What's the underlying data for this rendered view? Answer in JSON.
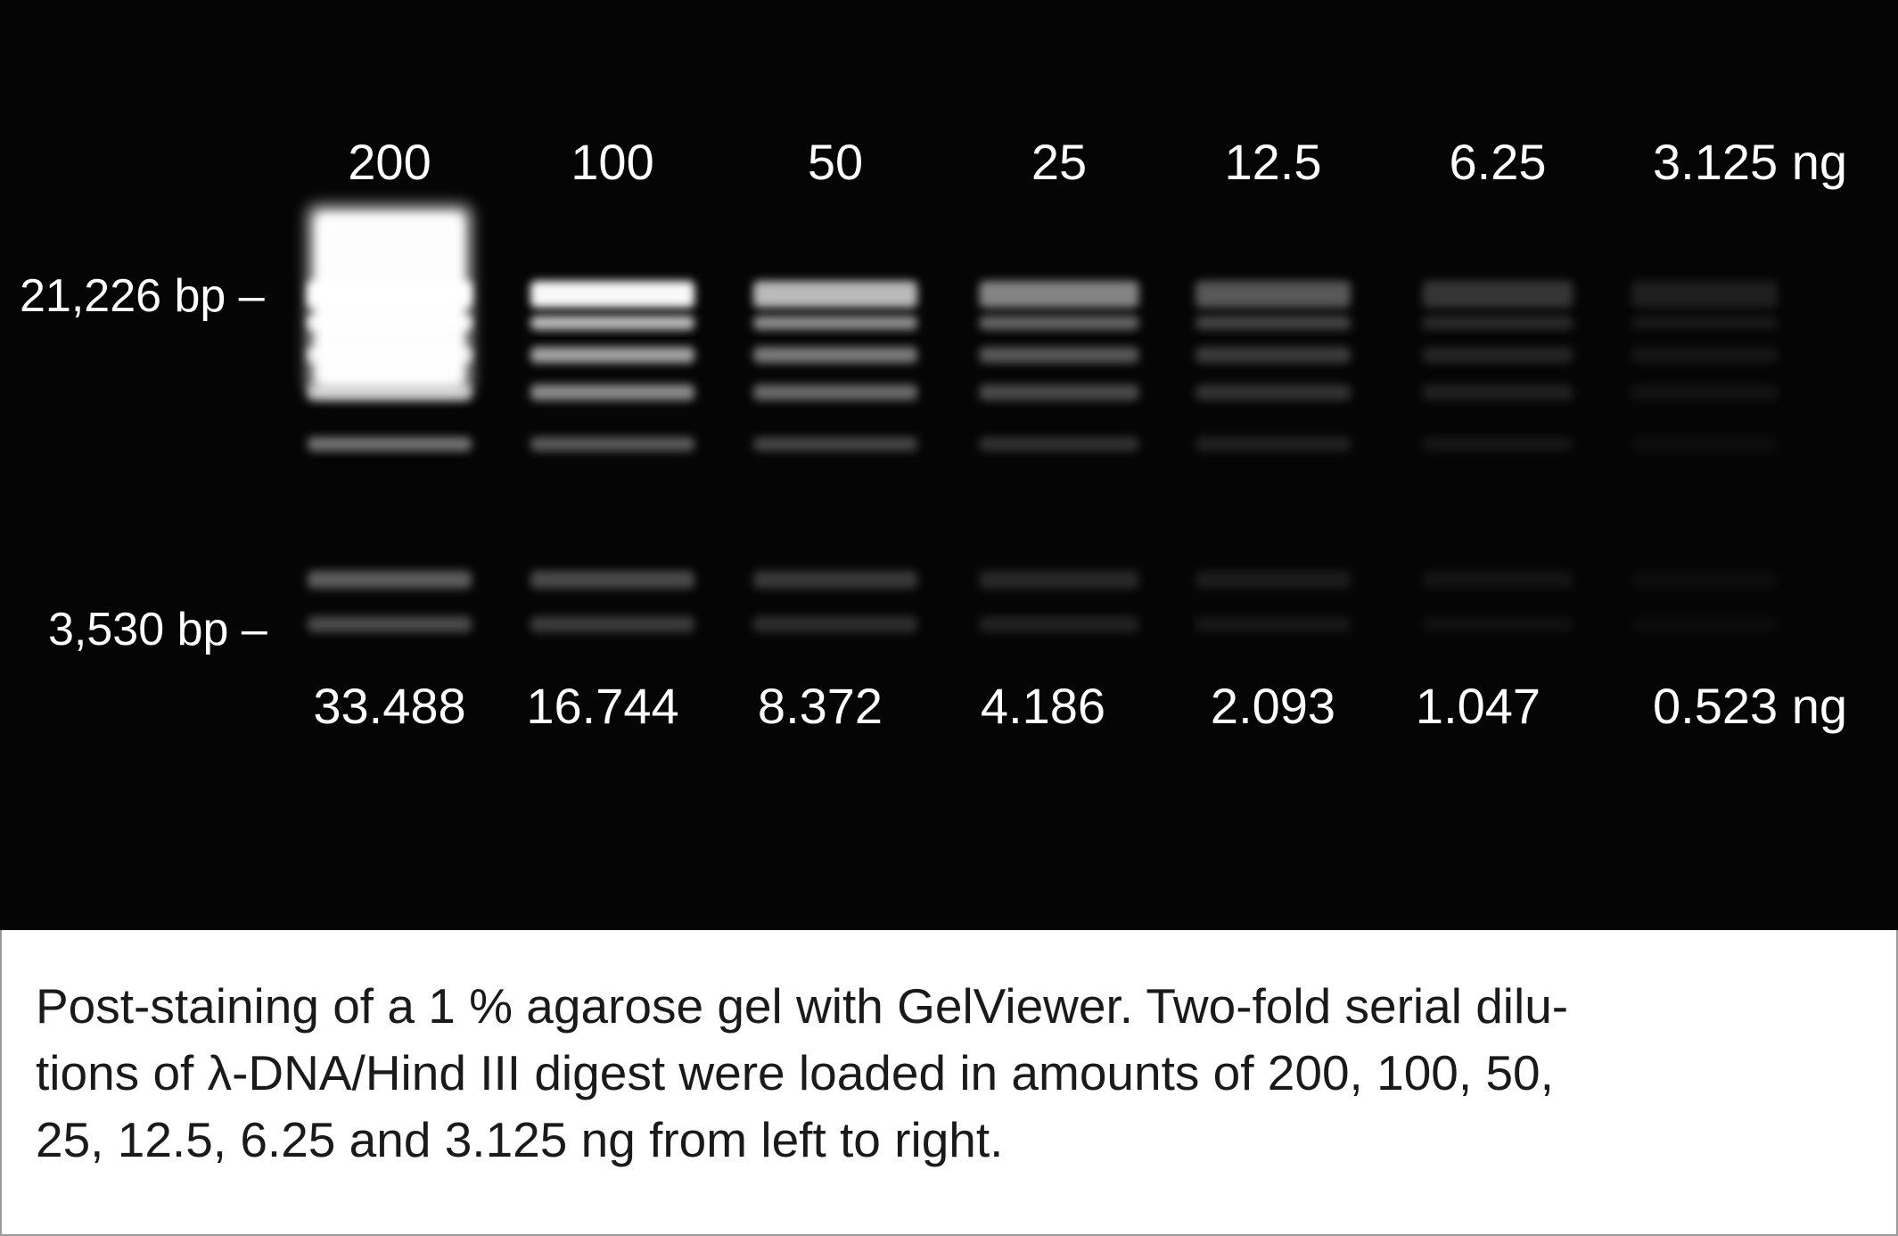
{
  "top_labels": [
    "200",
    "100",
    "50",
    "25",
    "12.5",
    "6.25",
    "3.125 ng"
  ],
  "bottom_labels": [
    "33.488",
    "16.744",
    "8.372",
    "4.186",
    "2.093",
    "1.047",
    "0.523 ng"
  ],
  "size_markers": {
    "upper": "21,226 bp –",
    "lower": "3,530 bp –"
  },
  "lane_load_ng": [
    200,
    100,
    50,
    25,
    12.5,
    6.25,
    3.125
  ],
  "caption": {
    "line1": "Post-staining of a 1 % agarose gel with GelViewer. Two-fold serial dilu-",
    "line2": "tions of λ-DNA/Hind III digest were loaded in amounts of 200, 100, 50,",
    "line3": "25, 12.5, 6.25 and 3.125 ng from left to right."
  },
  "colors": {
    "gel_background": "#050505",
    "band": "#ffffff",
    "caption_text": "#1a1a1a",
    "frame": "#9a9a9a"
  }
}
